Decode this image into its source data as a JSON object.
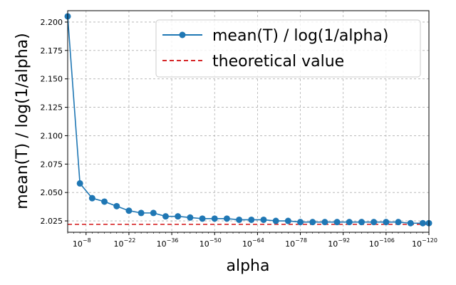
{
  "chart_data": {
    "type": "line",
    "xlabel": "alpha",
    "ylabel": "mean(T) / log(1/alpha)",
    "xscale": "log",
    "x_exponents_range": [
      -2,
      -120
    ],
    "xticks": [
      {
        "exp": -8,
        "label": "10",
        "sup": "−8"
      },
      {
        "exp": -22,
        "label": "10",
        "sup": "−22"
      },
      {
        "exp": -36,
        "label": "10",
        "sup": "−36"
      },
      {
        "exp": -50,
        "label": "10",
        "sup": "−50"
      },
      {
        "exp": -64,
        "label": "10",
        "sup": "−64"
      },
      {
        "exp": -78,
        "label": "10",
        "sup": "−78"
      },
      {
        "exp": -92,
        "label": "10",
        "sup": "−92"
      },
      {
        "exp": -106,
        "label": "10",
        "sup": "−106"
      },
      {
        "exp": -120,
        "label": "10",
        "sup": "−120"
      }
    ],
    "ylim": [
      2.015,
      2.21
    ],
    "yticks": [
      "2.025",
      "2.050",
      "2.075",
      "2.100",
      "2.125",
      "2.150",
      "2.175",
      "2.200"
    ],
    "grid": true,
    "legend_position": "top-right",
    "series": [
      {
        "name": "mean(T) / log(1/alpha)",
        "style": "line-marker",
        "color": "#1f77b4",
        "x_exponents": [
          -2,
          -6,
          -10,
          -14,
          -18,
          -22,
          -26,
          -30,
          -34,
          -38,
          -42,
          -46,
          -50,
          -54,
          -58,
          -62,
          -66,
          -70,
          -74,
          -78,
          -82,
          -86,
          -90,
          -94,
          -98,
          -102,
          -106,
          -110,
          -114,
          -118,
          -120
        ],
        "values": [
          2.205,
          2.058,
          2.045,
          2.042,
          2.038,
          2.034,
          2.032,
          2.032,
          2.029,
          2.029,
          2.028,
          2.027,
          2.027,
          2.027,
          2.026,
          2.026,
          2.026,
          2.025,
          2.025,
          2.024,
          2.024,
          2.024,
          2.024,
          2.024,
          2.024,
          2.024,
          2.024,
          2.024,
          2.023,
          2.023,
          2.023
        ]
      },
      {
        "name": "theoretical value",
        "style": "dashed",
        "color": "#d62728",
        "constant": 2.022
      }
    ]
  }
}
